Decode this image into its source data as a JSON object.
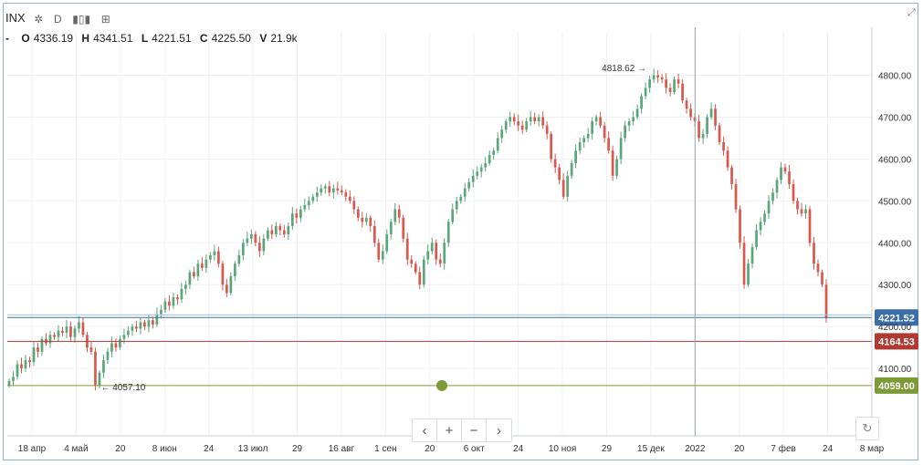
{
  "header": {
    "symbol": "INX",
    "gear_icon": "gear-icon",
    "interval": "D",
    "bars_icon": "bars-icon",
    "compare_icon": "compare-icon"
  },
  "ohlc": {
    "dash": "-",
    "o_label": "O",
    "o_value": "4336.19",
    "h_label": "H",
    "h_value": "4341.51",
    "l_label": "L",
    "l_value": "4221.51",
    "c_label": "C",
    "c_value": "4225.50",
    "v_label": "V",
    "v_value": "21.9k"
  },
  "nav": {
    "left": "‹",
    "plus": "+",
    "minus": "−",
    "right": "›"
  },
  "colors": {
    "up": "#5aa579",
    "down": "#d9584e",
    "grid": "#eef1f4",
    "axis_text": "#333"
  },
  "chart_data": {
    "type": "candlestick",
    "ylim": [
      4000,
      4860
    ],
    "y_ticks": [
      "4100.00",
      "4200.00",
      "4300.00",
      "4400.00",
      "4500.00",
      "4600.00",
      "4700.00",
      "4800.00"
    ],
    "x_ticks": [
      "18 апр",
      "4 май",
      "20",
      "8 июн",
      "24",
      "13 июл",
      "29",
      "16 авг",
      "1 сен",
      "20",
      "6 окт",
      "24",
      "10 ноя",
      "29",
      "15 дек",
      "2022",
      "20",
      "7 фев",
      "24",
      "8 мар"
    ],
    "levels": [
      {
        "label": "4221.52",
        "value": 4221.52,
        "color": "#3a6ea8"
      },
      {
        "label": "4164.53",
        "value": 4164.53,
        "color": "#b03a33"
      },
      {
        "label": "4059.00",
        "value": 4059.0,
        "color": "#7d9a39"
      }
    ],
    "annotations": [
      {
        "text": "4818.62",
        "value": 4818.62
      },
      {
        "text": "4057.10",
        "value": 4057.1
      }
    ],
    "close": [
      4070,
      4080,
      4110,
      4100,
      4120,
      4115,
      4150,
      4140,
      4170,
      4160,
      4180,
      4175,
      4190,
      4185,
      4200,
      4175,
      4195,
      4210,
      4180,
      4150,
      4140,
      4060,
      4090,
      4120,
      4140,
      4160,
      4150,
      4170,
      4180,
      4190,
      4200,
      4195,
      4210,
      4200,
      4215,
      4205,
      4230,
      4240,
      4260,
      4250,
      4270,
      4265,
      4290,
      4300,
      4330,
      4320,
      4350,
      4340,
      4360,
      4370,
      4380,
      4350,
      4300,
      4280,
      4320,
      4350,
      4370,
      4400,
      4410,
      4420,
      4400,
      4380,
      4410,
      4430,
      4420,
      4440,
      4430,
      4420,
      4440,
      4470,
      4460,
      4480,
      4490,
      4500,
      4510,
      4520,
      4530,
      4535,
      4520,
      4530,
      4525,
      4520,
      4510,
      4500,
      4480,
      4460,
      4450,
      4460,
      4440,
      4400,
      4360,
      4380,
      4420,
      4450,
      4480,
      4460,
      4410,
      4360,
      4350,
      4330,
      4300,
      4360,
      4380,
      4400,
      4360,
      4350,
      4400,
      4450,
      4480,
      4500,
      4510,
      4530,
      4545,
      4560,
      4570,
      4580,
      4590,
      4610,
      4620,
      4650,
      4670,
      4690,
      4700,
      4690,
      4680,
      4670,
      4690,
      4700,
      4690,
      4700,
      4680,
      4660,
      4600,
      4580,
      4550,
      4510,
      4560,
      4590,
      4620,
      4640,
      4650,
      4660,
      4690,
      4700,
      4680,
      4650,
      4620,
      4560,
      4600,
      4650,
      4680,
      4690,
      4700,
      4720,
      4750,
      4770,
      4790,
      4800,
      4795,
      4790,
      4770,
      4760,
      4790,
      4780,
      4740,
      4720,
      4700,
      4690,
      4650,
      4660,
      4700,
      4720,
      4680,
      4640,
      4620,
      4580,
      4540,
      4480,
      4400,
      4300,
      4350,
      4390,
      4430,
      4450,
      4470,
      4500,
      4520,
      4550,
      4580,
      4570,
      4540,
      4500,
      4480,
      4470,
      4480,
      4400,
      4350,
      4330,
      4300,
      4220
    ]
  }
}
